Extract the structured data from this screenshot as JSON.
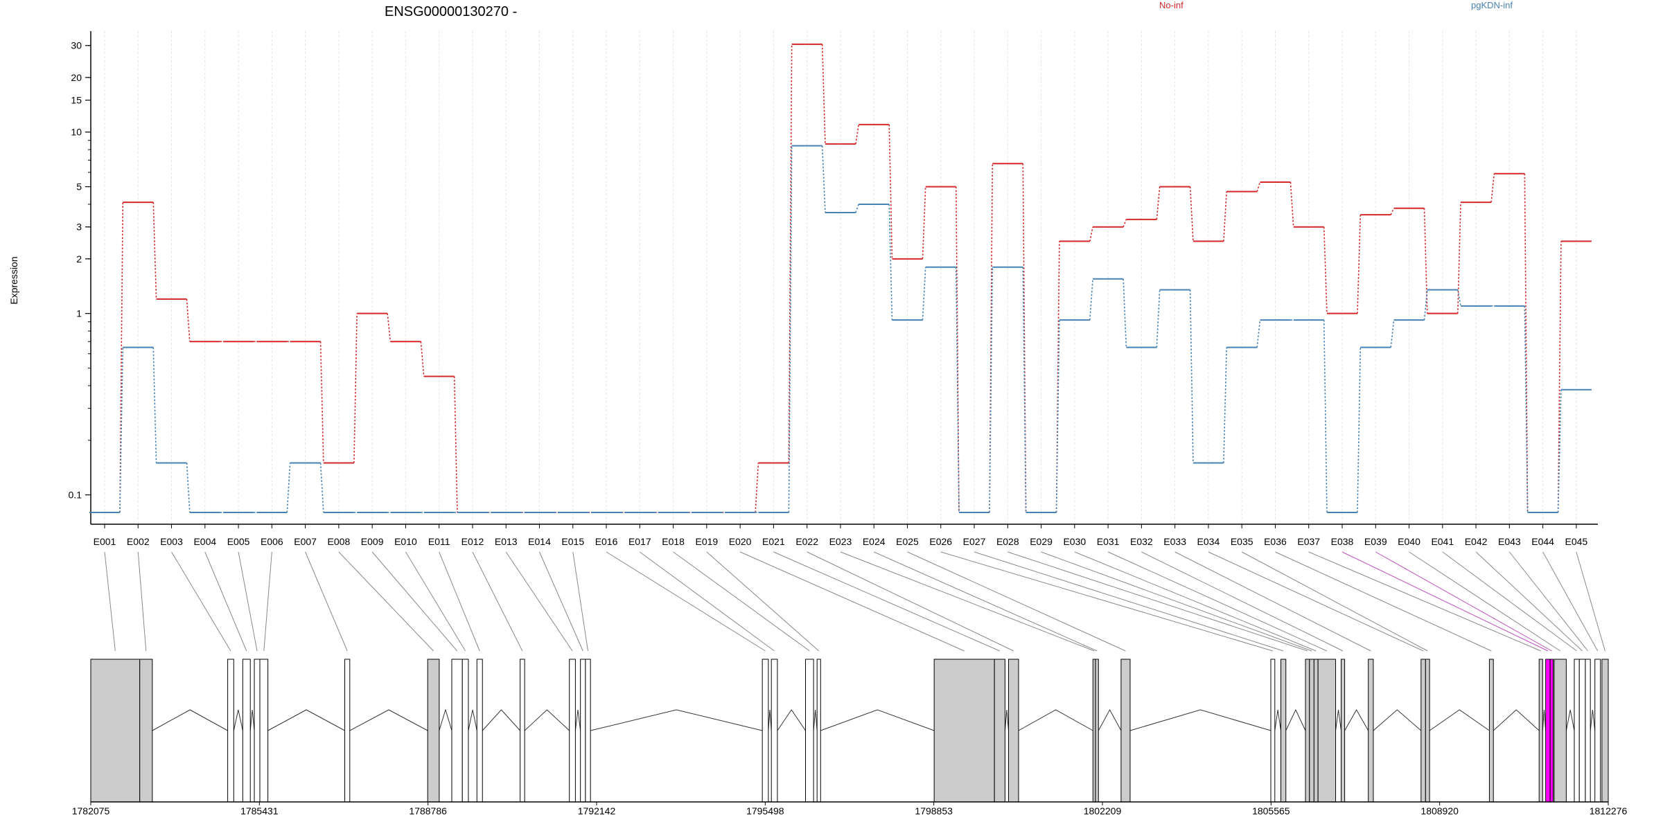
{
  "chart_data": {
    "type": "line",
    "title": "ENSG00000130270 -",
    "xlabel": "",
    "ylabel": "Expression",
    "y_scale": "log",
    "ylim": [
      0.08,
      36
    ],
    "y_ticks": [
      0.1,
      1,
      2,
      3,
      5,
      10,
      15,
      20,
      30
    ],
    "y_tick_labels": [
      "0.1",
      "1",
      "2",
      "3",
      "5",
      "10",
      "15",
      "20",
      "30"
    ],
    "grid": "vertical dotted",
    "legend_position": "top",
    "categories": [
      "E001",
      "E002",
      "E003",
      "E004",
      "E005",
      "E006",
      "E007",
      "E008",
      "E009",
      "E010",
      "E011",
      "E012",
      "E013",
      "E014",
      "E015",
      "E016",
      "E017",
      "E018",
      "E019",
      "E020",
      "E021",
      "E022",
      "E023",
      "E024",
      "E025",
      "E026",
      "E027",
      "E028",
      "E029",
      "E030",
      "E031",
      "E032",
      "E033",
      "E034",
      "E035",
      "E036",
      "E037",
      "E038",
      "E039",
      "E040",
      "E041",
      "E042",
      "E043",
      "E044",
      "E045"
    ],
    "series": [
      {
        "name": "No-inf",
        "color": "#d62728",
        "values": [
          0.08,
          4.1,
          1.2,
          0.7,
          0.7,
          0.7,
          0.7,
          0.15,
          1.0,
          0.7,
          0.45,
          0.08,
          0.08,
          0.08,
          0.08,
          0.08,
          0.08,
          0.08,
          0.08,
          0.08,
          0.15,
          30.5,
          8.6,
          11.0,
          2.0,
          5.0,
          0.08,
          6.7,
          0.08,
          2.5,
          3.0,
          3.3,
          5.0,
          2.5,
          4.7,
          5.3,
          3.0,
          1.0,
          3.5,
          3.8,
          1.0,
          4.1,
          5.9,
          0.08,
          2.5
        ]
      },
      {
        "name": "pgKDN-inf",
        "color": "#4682b4",
        "values": [
          0.08,
          0.65,
          0.15,
          0.08,
          0.08,
          0.08,
          0.15,
          0.08,
          0.08,
          0.08,
          0.08,
          0.08,
          0.08,
          0.08,
          0.08,
          0.08,
          0.08,
          0.08,
          0.08,
          0.08,
          0.08,
          8.4,
          3.6,
          4.0,
          0.92,
          1.8,
          0.08,
          1.8,
          0.08,
          0.92,
          1.55,
          0.65,
          1.35,
          0.15,
          0.65,
          0.92,
          0.92,
          0.08,
          0.65,
          0.92,
          1.35,
          1.1,
          1.1,
          0.08,
          0.38
        ]
      }
    ],
    "gene_model": {
      "coordinate_labels": [
        "1782075",
        "1785431",
        "1788786",
        "1792142",
        "1795498",
        "1798853",
        "1802209",
        "1805565",
        "1808920",
        "1812276"
      ],
      "coordinate_range": [
        1782075,
        1812276
      ],
      "exons": [
        {
          "start": 1782075,
          "end": 1783050,
          "fill": "#cccccc"
        },
        {
          "start": 1783050,
          "end": 1783300,
          "fill": "#cccccc"
        },
        {
          "start": 1784800,
          "end": 1784920,
          "fill": "#ffffff"
        },
        {
          "start": 1785100,
          "end": 1785250,
          "fill": "#ffffff"
        },
        {
          "start": 1785330,
          "end": 1785440,
          "fill": "#ffffff"
        },
        {
          "start": 1785440,
          "end": 1785600,
          "fill": "#ffffff"
        },
        {
          "start": 1787130,
          "end": 1787230,
          "fill": "#ffffff"
        },
        {
          "start": 1788780,
          "end": 1789010,
          "fill": "#cccccc"
        },
        {
          "start": 1789260,
          "end": 1789470,
          "fill": "#ffffff"
        },
        {
          "start": 1789470,
          "end": 1789590,
          "fill": "#ffffff"
        },
        {
          "start": 1789760,
          "end": 1789870,
          "fill": "#ffffff"
        },
        {
          "start": 1790620,
          "end": 1790710,
          "fill": "#ffffff"
        },
        {
          "start": 1791600,
          "end": 1791720,
          "fill": "#ffffff"
        },
        {
          "start": 1791820,
          "end": 1791920,
          "fill": "#ffffff"
        },
        {
          "start": 1791920,
          "end": 1792020,
          "fill": "#ffffff"
        },
        {
          "start": 1795440,
          "end": 1795560,
          "fill": "#ffffff"
        },
        {
          "start": 1795620,
          "end": 1795740,
          "fill": "#ffffff"
        },
        {
          "start": 1796300,
          "end": 1796460,
          "fill": "#ffffff"
        },
        {
          "start": 1796530,
          "end": 1796600,
          "fill": "#ffffff"
        },
        {
          "start": 1798860,
          "end": 1800060,
          "fill": "#cccccc"
        },
        {
          "start": 1800060,
          "end": 1800270,
          "fill": "#cccccc"
        },
        {
          "start": 1800340,
          "end": 1800540,
          "fill": "#cccccc"
        },
        {
          "start": 1802020,
          "end": 1802070,
          "fill": "#cccccc"
        },
        {
          "start": 1802070,
          "end": 1802130,
          "fill": "#cccccc"
        },
        {
          "start": 1802580,
          "end": 1802760,
          "fill": "#cccccc"
        },
        {
          "start": 1805560,
          "end": 1805640,
          "fill": "#ffffff"
        },
        {
          "start": 1805760,
          "end": 1805860,
          "fill": "#cccccc"
        },
        {
          "start": 1806250,
          "end": 1806330,
          "fill": "#cccccc"
        },
        {
          "start": 1806330,
          "end": 1806420,
          "fill": "#cccccc"
        },
        {
          "start": 1806420,
          "end": 1806500,
          "fill": "#cccccc"
        },
        {
          "start": 1806500,
          "end": 1806850,
          "fill": "#cccccc"
        },
        {
          "start": 1806960,
          "end": 1807030,
          "fill": "#cccccc"
        },
        {
          "start": 1807500,
          "end": 1807600,
          "fill": "#cccccc"
        },
        {
          "start": 1808550,
          "end": 1808640,
          "fill": "#cccccc"
        },
        {
          "start": 1808640,
          "end": 1808720,
          "fill": "#cccccc"
        },
        {
          "start": 1809910,
          "end": 1809990,
          "fill": "#cccccc"
        },
        {
          "start": 1810900,
          "end": 1810970,
          "fill": "#cccccc"
        },
        {
          "start": 1811030,
          "end": 1811120,
          "fill": "#ff00ff"
        },
        {
          "start": 1811120,
          "end": 1811180,
          "fill": "#ff00ff"
        },
        {
          "start": 1811200,
          "end": 1811440,
          "fill": "#cccccc"
        },
        {
          "start": 1811600,
          "end": 1811700,
          "fill": "#ffffff"
        },
        {
          "start": 1811700,
          "end": 1811820,
          "fill": "#ffffff"
        },
        {
          "start": 1811820,
          "end": 1811920,
          "fill": "#ffffff"
        },
        {
          "start": 1812010,
          "end": 1812120,
          "fill": "#ffffff"
        },
        {
          "start": 1812150,
          "end": 1812276,
          "fill": "#cccccc"
        }
      ]
    }
  }
}
